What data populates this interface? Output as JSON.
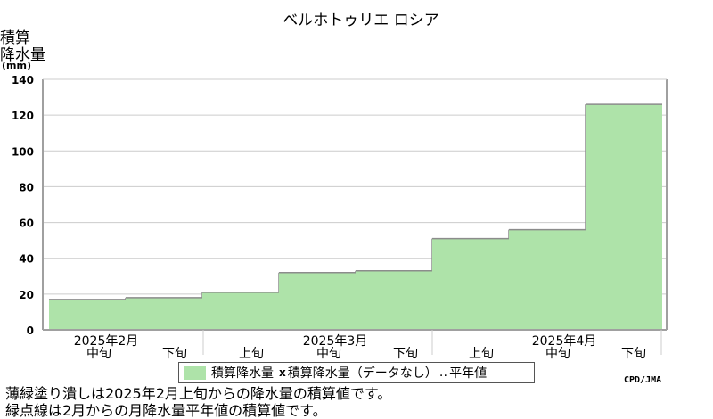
{
  "chart_data": {
    "type": "bar",
    "title": "ベルホトゥリエ ロシア",
    "ylabel_lines": [
      "積算",
      "降水量",
      "(mm)"
    ],
    "yticks": [
      0,
      20,
      40,
      60,
      80,
      100,
      120,
      140
    ],
    "ylim": [
      0,
      140
    ],
    "categories": [
      "中旬",
      "下旬",
      "上旬",
      "中旬",
      "下旬",
      "上旬",
      "中旬",
      "下旬"
    ],
    "month_labels": [
      "2025年2月",
      "2025年3月",
      "2025年4月"
    ],
    "series": [
      {
        "name": "積算降水量",
        "color": "#aee3a9",
        "values": [
          17,
          18,
          21,
          32,
          33,
          51,
          56,
          126
        ]
      }
    ],
    "grid": true
  },
  "legend": {
    "item1": "積算降水量",
    "item2_marker": "x",
    "item2": "積算降水量（データなし）",
    "item3_marker": "‥",
    "item3": "平年値"
  },
  "credit": "CPD/JMA",
  "notes": [
    "薄緑塗り潰しは2025年2月上旬からの降水量の積算値です。",
    "緑点線は2月からの月降水量平年値の積算値です。"
  ]
}
